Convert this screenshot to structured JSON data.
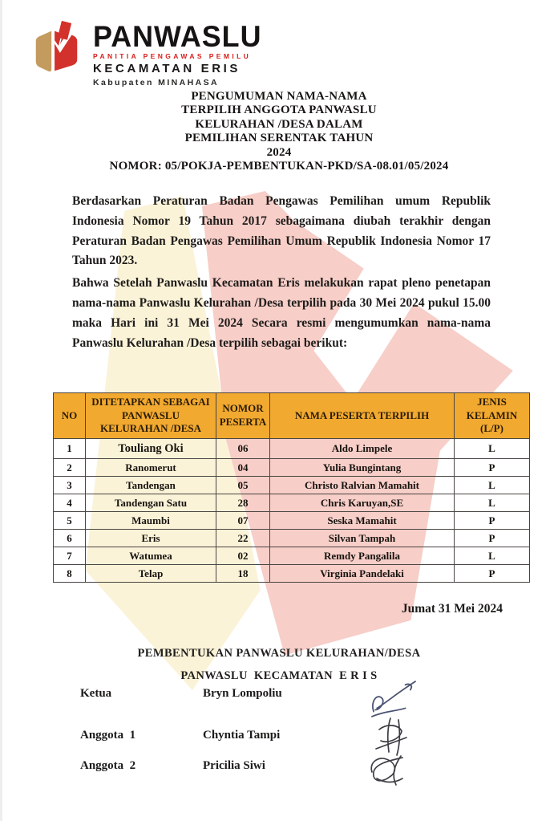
{
  "letterhead": {
    "org_name": "PANWASLU",
    "org_subtitle": "PANITIA PENGAWAS PEMILU",
    "org_region": "KECAMATAN ERIS",
    "org_regency": "Kabupaten MINAHASA"
  },
  "title": {
    "lines": [
      "PENGUMUMAN NAMA-NAMA",
      "TERPILIH ANGGOTA PANWASLU",
      "KELURAHAN /DESA DALAM",
      "PEMILIHAN SERENTAK TAHUN",
      "2024",
      "NOMOR: 05/POKJA-PEMBENTUKAN-PKD/SA-08.01/05/2024"
    ]
  },
  "paragraphs": [
    "Berdasarkan Peraturan Badan Pengawas Pemilihan umum Republik Indonesia Nomor 19 Tahun 2017 sebagaimana diubah terakhir dengan Peraturan Badan Pengawas Pemilihan Umum Republik Indonesia Nomor 17 Tahun 2023.",
    "Bahwa Setelah Panwaslu Kecamatan Eris melakukan rapat pleno penetapan nama-nama Panwaslu Kelurahan /Desa terpilih pada 30 Mei 2024 pukul 15.00 maka Hari ini 31 Mei 2024 Secara resmi mengumumkan nama-nama Panwaslu Kelurahan /Desa terpilih sebagai berikut:"
  ],
  "table": {
    "headers": [
      "NO",
      "DITETAPKAN SEBAGAI PANWASLU KELURAHAN /DESA",
      "NOMOR PESERTA",
      "NAMA PESERTA TERPILIH",
      "JENIS KELAMIN (L/P)"
    ],
    "rows": [
      [
        "1",
        "Touliang Oki",
        "06",
        "Aldo Limpele",
        "L"
      ],
      [
        "2",
        "Ranomerut",
        "04",
        "Yulia Bungintang",
        "P"
      ],
      [
        "3",
        "Tandengan",
        "05",
        "Christo Ralvian Mamahit",
        "L"
      ],
      [
        "4",
        "Tandengan Satu",
        "28",
        "Chris Karuyan,SE",
        "L"
      ],
      [
        "5",
        "Maumbi",
        "07",
        "Seska Mamahit",
        "P"
      ],
      [
        "6",
        "Eris",
        "22",
        "Silvan Tampah",
        "P"
      ],
      [
        "7",
        "Watumea",
        "02",
        "Remdy Pangalila",
        "L"
      ],
      [
        "8",
        "Telap",
        "18",
        "Virginia Pandelaki",
        "P"
      ]
    ]
  },
  "date_line": "Jumat 31 Mei 2024",
  "footer": {
    "heading1": "PEMBENTUKAN PANWASLU KELURAHAN/DESA",
    "heading2": "PANWASLU  KECAMATAN  E R I S"
  },
  "signatories": [
    {
      "role": "Ketua",
      "name": "Bryn Lompoliu"
    },
    {
      "role": "Anggota  1",
      "name": "Chyntia Tampi"
    },
    {
      "role": "Anggota  2",
      "name": "Pricilia Siwi"
    }
  ],
  "colors": {
    "table_header_bg": "#F2A930",
    "brand_red": "#D3312B",
    "brand_tan": "#C49B5F",
    "subtitle_red": "#D8201D",
    "watermark_cream": "#FBF3D8",
    "watermark_pink": "#F7CEC8"
  }
}
